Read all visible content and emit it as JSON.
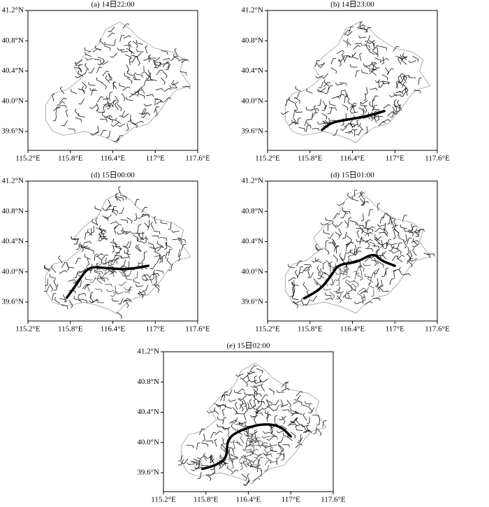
{
  "axes": {
    "xlim": [
      115.2,
      117.6
    ],
    "ylim": [
      39.35,
      41.2
    ],
    "xticks": [
      {
        "value": 115.2,
        "label": "115.2°E"
      },
      {
        "value": 115.8,
        "label": "115.8°E"
      },
      {
        "value": 116.4,
        "label": "116.4°E"
      },
      {
        "value": 117,
        "label": "117°E"
      },
      {
        "value": 117.6,
        "label": "117.6°E"
      }
    ],
    "yticks": [
      {
        "value": 39.6,
        "label": "39.6°N"
      },
      {
        "value": 40.0,
        "label": "40.0°N"
      },
      {
        "value": 40.4,
        "label": "40.4°N"
      },
      {
        "value": 40.8,
        "label": "40.8°N"
      },
      {
        "value": 41.2,
        "label": "41.2°N"
      }
    ]
  },
  "panels": [
    {
      "title": "(a) 14日22:00"
    },
    {
      "title": "(b) 14日23:00"
    },
    {
      "title": "(d) 15日00:00"
    },
    {
      "title": "(d) 15日01:00"
    },
    {
      "title": "(e) 15日02:00"
    }
  ]
}
